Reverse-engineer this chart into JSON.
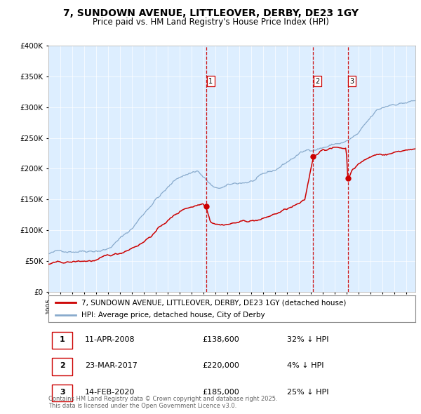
{
  "title": "7, SUNDOWN AVENUE, LITTLEOVER, DERBY, DE23 1GY",
  "subtitle": "Price paid vs. HM Land Registry's House Price Index (HPI)",
  "title_fontsize": 10,
  "subtitle_fontsize": 8.5,
  "plot_bg_color": "#ddeeff",
  "red_line_color": "#cc0000",
  "blue_line_color": "#88aacc",
  "vline_color": "#cc0000",
  "ylim": [
    0,
    400000
  ],
  "yticks": [
    0,
    50000,
    100000,
    150000,
    200000,
    250000,
    300000,
    350000,
    400000
  ],
  "ytick_labels": [
    "£0",
    "£50K",
    "£100K",
    "£150K",
    "£200K",
    "£250K",
    "£300K",
    "£350K",
    "£400K"
  ],
  "xstart": 1995.0,
  "xend": 2025.8,
  "vlines": [
    2008.27,
    2017.22,
    2020.12
  ],
  "vline_labels": [
    "1",
    "2",
    "3"
  ],
  "sale_dates": [
    2008.27,
    2017.22,
    2020.12
  ],
  "sale_prices": [
    138600,
    220000,
    185000
  ],
  "legend_red": "7, SUNDOWN AVENUE, LITTLEOVER, DERBY, DE23 1GY (detached house)",
  "legend_blue": "HPI: Average price, detached house, City of Derby",
  "table": [
    [
      "1",
      "11-APR-2008",
      "£138,600",
      "32% ↓ HPI"
    ],
    [
      "2",
      "23-MAR-2017",
      "£220,000",
      "4% ↓ HPI"
    ],
    [
      "3",
      "14-FEB-2020",
      "£185,000",
      "25% ↓ HPI"
    ]
  ],
  "footnote": "Contains HM Land Registry data © Crown copyright and database right 2025.\nThis data is licensed under the Open Government Licence v3.0."
}
